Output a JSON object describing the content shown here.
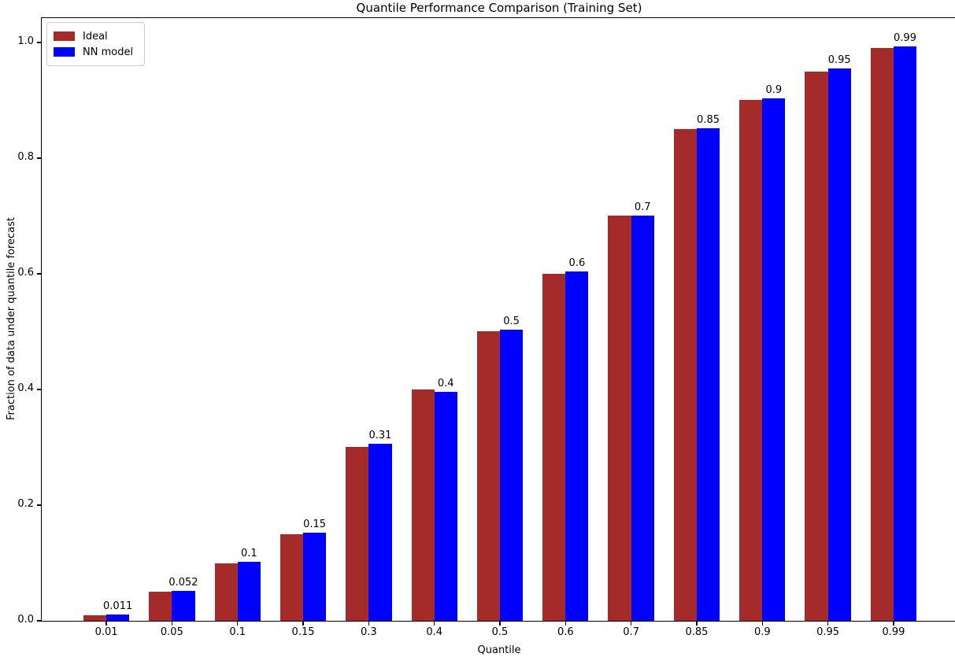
{
  "chart_data": {
    "type": "bar",
    "title": "Quantile Performance Comparison (Training Set)",
    "xlabel": "Quantile",
    "ylabel": "Fraction of data under quantile forecast",
    "categories": [
      "0.01",
      "0.05",
      "0.1",
      "0.15",
      "0.3",
      "0.4",
      "0.5",
      "0.6",
      "0.7",
      "0.85",
      "0.9",
      "0.95",
      "0.99"
    ],
    "series": [
      {
        "name": "Ideal",
        "color": "#A52A2A",
        "values": [
          0.01,
          0.05,
          0.1,
          0.15,
          0.3,
          0.4,
          0.5,
          0.6,
          0.7,
          0.85,
          0.9,
          0.95,
          0.99
        ]
      },
      {
        "name": "NN model",
        "color": "#0000FF",
        "values": [
          0.011,
          0.052,
          0.102,
          0.152,
          0.306,
          0.396,
          0.503,
          0.604,
          0.7,
          0.851,
          0.903,
          0.955,
          0.993
        ]
      }
    ],
    "bar_labels": [
      "0.011",
      "0.052",
      "0.1",
      "0.15",
      "0.31",
      "0.4",
      "0.5",
      "0.6",
      "0.7",
      "0.85",
      "0.9",
      "0.95",
      "0.99"
    ],
    "yticks": [
      "0.0",
      "0.2",
      "0.4",
      "0.6",
      "0.8",
      "1.0"
    ],
    "ylim": [
      0,
      1.042
    ],
    "grid": false,
    "legend_position": "upper left"
  }
}
